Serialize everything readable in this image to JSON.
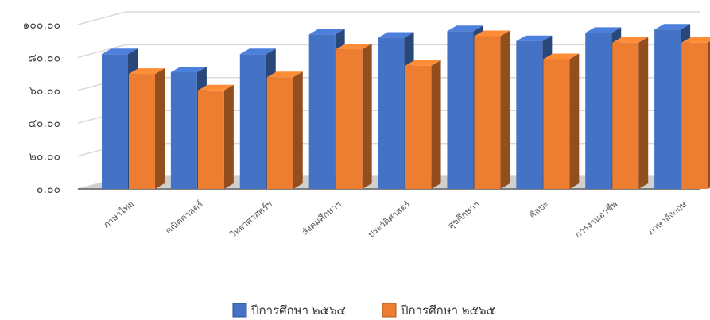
{
  "chart_data": {
    "type": "bar",
    "categories": [
      "ภาษาไทย",
      "คณิตศาสตร์",
      "วิทยาศาสตร์ฯ",
      "สังคมศึกษาฯ",
      "ประวัติศาสตร์",
      "สุขศึกษาฯ",
      "ศิลปะ",
      "การงานอาชีพ",
      "ภาษาอังกฤษ"
    ],
    "series": [
      {
        "name": "ปีการศึกษา ๒๕๖๔",
        "values": [
          82,
          71,
          82,
          94,
          92,
          96,
          90,
          95,
          97
        ],
        "color": "#4472c4"
      },
      {
        "name": "ปีการศึกษา ๒๕๖๕",
        "values": [
          70,
          60,
          68,
          85,
          75,
          93,
          79,
          89,
          89
        ],
        "color": "#ed7d31"
      }
    ],
    "yticks": [
      "๐.๐๐",
      "๒๐.๐๐",
      "๔๐.๐๐",
      "๖๐.๐๐",
      "๘๐.๐๐",
      "๑๐๐.๐๐"
    ],
    "ylim": [
      0,
      100
    ],
    "grid": true,
    "legend_position": "bottom",
    "three_d": true
  }
}
